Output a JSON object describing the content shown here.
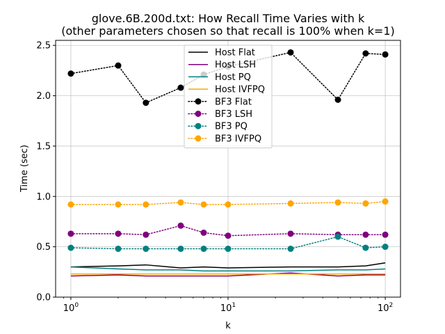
{
  "chart_data": {
    "type": "line",
    "title_line1": "glove.6B.200d.txt: How Recall Time Varies with k",
    "title_line2": "(other parameters chosen so that recall is 100% when k=1)",
    "xlabel": "k",
    "ylabel": "Time (sec)",
    "xscale": "log",
    "xlim": [
      0.8,
      125
    ],
    "ylim": [
      0,
      2.55
    ],
    "grid": true,
    "legend_placement": "upper-center",
    "x_ticks": [
      {
        "value": 1,
        "base": "10",
        "exp": "0"
      },
      {
        "value": 10,
        "base": "10",
        "exp": "1"
      },
      {
        "value": 100,
        "base": "10",
        "exp": "2"
      }
    ],
    "y_ticks": [
      {
        "value": 0,
        "label": "0.0"
      },
      {
        "value": 0.5,
        "label": "0.5"
      },
      {
        "value": 1.0,
        "label": "1.0"
      },
      {
        "value": 1.5,
        "label": "1.5"
      },
      {
        "value": 2.0,
        "label": "2.0"
      },
      {
        "value": 2.5,
        "label": "2.5"
      }
    ],
    "x": [
      1,
      2,
      3,
      5,
      7,
      10,
      25,
      50,
      75,
      100
    ],
    "series": [
      {
        "name": "Host Flat",
        "color": "#000000",
        "style": "solid",
        "marker": false,
        "values": [
          0.3,
          0.31,
          0.32,
          0.29,
          0.3,
          0.29,
          0.3,
          0.3,
          0.31,
          0.34
        ]
      },
      {
        "name": "Host LSH",
        "color": "#800080",
        "style": "solid",
        "marker": false,
        "values": [
          0.21,
          0.22,
          0.21,
          0.21,
          0.21,
          0.21,
          0.24,
          0.21,
          0.22,
          0.22
        ]
      },
      {
        "name": "Host PQ",
        "color": "#008080",
        "style": "solid",
        "marker": false,
        "values": [
          0.3,
          0.28,
          0.27,
          0.27,
          0.26,
          0.26,
          0.26,
          0.27,
          0.27,
          0.28
        ]
      },
      {
        "name": "Host IVFPQ",
        "color": "#FFA500",
        "style": "solid",
        "marker": false,
        "values": [
          0.23,
          0.23,
          0.23,
          0.23,
          0.23,
          0.23,
          0.23,
          0.23,
          0.23,
          0.23
        ]
      },
      {
        "name": "BF3 Flat",
        "color": "#000000",
        "style": "dotted",
        "marker": true,
        "values": [
          2.22,
          2.3,
          1.93,
          2.08,
          2.21,
          2.29,
          2.43,
          1.96,
          2.42,
          2.41
        ]
      },
      {
        "name": "BF3 LSH",
        "color": "#800080",
        "style": "dotted",
        "marker": true,
        "values": [
          0.63,
          0.63,
          0.62,
          0.71,
          0.64,
          0.61,
          0.63,
          0.62,
          0.62,
          0.62
        ]
      },
      {
        "name": "BF3 PQ",
        "color": "#008080",
        "style": "dotted",
        "marker": true,
        "values": [
          0.49,
          0.48,
          0.48,
          0.48,
          0.48,
          0.48,
          0.48,
          0.6,
          0.49,
          0.5
        ]
      },
      {
        "name": "BF3 IVFPQ",
        "color": "#FFA500",
        "style": "dotted",
        "marker": true,
        "values": [
          0.92,
          0.92,
          0.92,
          0.94,
          0.92,
          0.92,
          0.93,
          0.94,
          0.93,
          0.95
        ]
      }
    ]
  }
}
